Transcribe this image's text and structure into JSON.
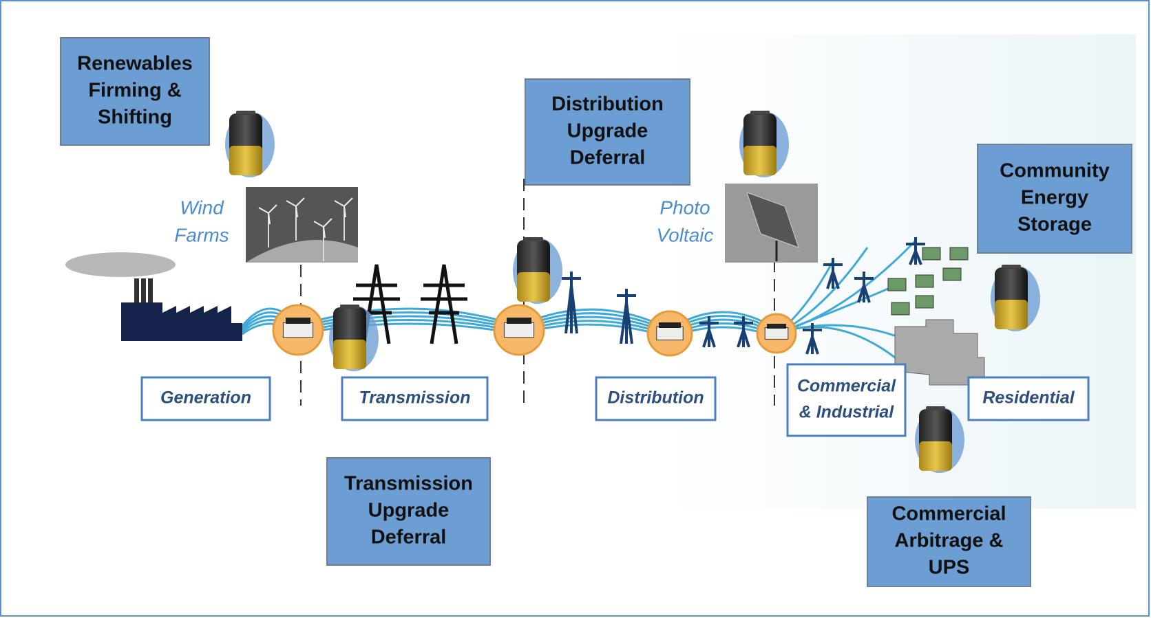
{
  "callouts": [
    {
      "lines": [
        "Renewables",
        "Firming &",
        "Shifting"
      ]
    },
    {
      "lines": [
        "Distribution",
        "Upgrade",
        "Deferral"
      ]
    },
    {
      "lines": [
        "Community",
        "Energy",
        "Storage"
      ]
    },
    {
      "lines": [
        "Transmission",
        "Upgrade",
        "Deferral"
      ]
    },
    {
      "lines": [
        "Commercial",
        "Arbitrage &",
        "UPS"
      ]
    }
  ],
  "stages": [
    {
      "lines": [
        "Generation"
      ]
    },
    {
      "lines": [
        "Transmission"
      ]
    },
    {
      "lines": [
        "Distribution"
      ]
    },
    {
      "lines": [
        "Commercial",
        "& Industrial"
      ]
    },
    {
      "lines": [
        "Residential"
      ]
    }
  ],
  "image_labels": [
    {
      "lines": [
        "Wind",
        "Farms"
      ]
    },
    {
      "lines": [
        "Photo",
        "Voltaic"
      ]
    }
  ]
}
